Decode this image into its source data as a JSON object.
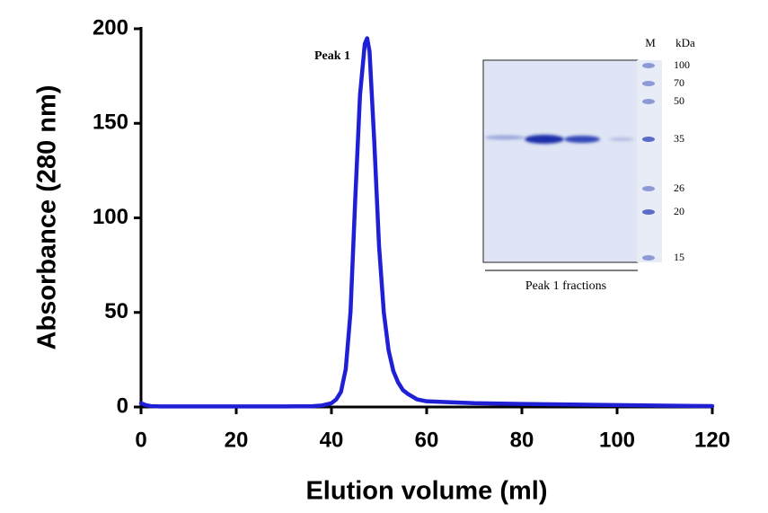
{
  "chart_data": {
    "type": "line",
    "x_label": "Elution volume  (ml)",
    "y_label": "Absorbance (280 nm)",
    "annotation": "Peak 1",
    "x": [
      0,
      1,
      2,
      4,
      10,
      20,
      30,
      36,
      38,
      40,
      41,
      42,
      43,
      44,
      45,
      46,
      47,
      47.5,
      48,
      49,
      50,
      51,
      52,
      53,
      54,
      55,
      56,
      58,
      60,
      65,
      70,
      80,
      90,
      100,
      110,
      120
    ],
    "series": [
      {
        "color": "#1f1fd6",
        "values": [
          2,
          1,
          0.5,
          0.3,
          0.3,
          0.3,
          0.3,
          0.4,
          0.8,
          2,
          4,
          8,
          20,
          50,
          110,
          165,
          192,
          195,
          188,
          140,
          85,
          50,
          30,
          19,
          13,
          9,
          7,
          4,
          3,
          2.5,
          2,
          1.6,
          1.3,
          1,
          0.7,
          0.5
        ]
      }
    ],
    "xlim": [
      0,
      120
    ],
    "xticks": [
      0,
      20,
      40,
      60,
      80,
      100,
      120
    ],
    "ylim": [
      0,
      200
    ],
    "yticks": [
      0,
      50,
      100,
      150,
      200
    ],
    "inset": {
      "lane_label": "M",
      "unit": "kDa",
      "markers": [
        "100",
        "70",
        "50",
        "35",
        "26",
        "20",
        "15"
      ],
      "caption": "Peak 1 fractions"
    }
  }
}
